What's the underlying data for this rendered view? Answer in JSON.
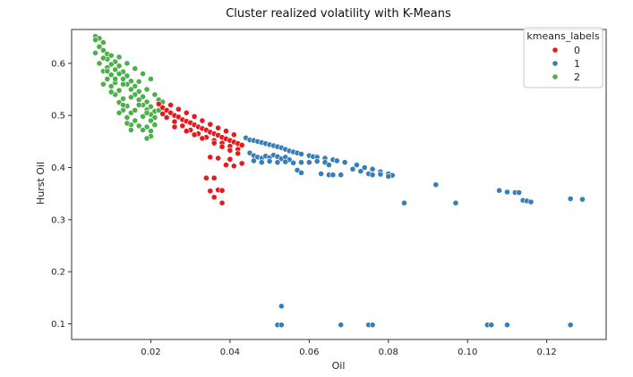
{
  "chart_data": {
    "type": "scatter",
    "title": "Cluster realized volatility with K-Means",
    "xlabel": "Oil",
    "ylabel": "Hurst Oil",
    "xlim": [
      0.0,
      0.135
    ],
    "ylim": [
      0.07,
      0.665
    ],
    "xticks": [
      0.02,
      0.04,
      0.06,
      0.08,
      0.1,
      0.12
    ],
    "xtick_labels": [
      "0.02",
      "0.04",
      "0.06",
      "0.08",
      "0.10",
      "0.12"
    ],
    "yticks": [
      0.1,
      0.2,
      0.3,
      0.4,
      0.5,
      0.6
    ],
    "ytick_labels": [
      "0.1",
      "0.2",
      "0.3",
      "0.4",
      "0.5",
      "0.6"
    ],
    "grid": false,
    "legend": {
      "title": "kmeans_labels",
      "placement": "top-right",
      "entries": [
        "0",
        "1",
        "2"
      ]
    },
    "colors": {
      "0": "#e41a1c",
      "1": "#377eb8",
      "2": "#4daf4a"
    },
    "series": [
      {
        "name": "0",
        "points": [
          [
            0.022,
            0.522
          ],
          [
            0.023,
            0.515
          ],
          [
            0.024,
            0.51
          ],
          [
            0.025,
            0.505
          ],
          [
            0.026,
            0.5
          ],
          [
            0.027,
            0.497
          ],
          [
            0.028,
            0.492
          ],
          [
            0.029,
            0.489
          ],
          [
            0.03,
            0.486
          ],
          [
            0.031,
            0.482
          ],
          [
            0.032,
            0.478
          ],
          [
            0.033,
            0.475
          ],
          [
            0.034,
            0.472
          ],
          [
            0.035,
            0.468
          ],
          [
            0.036,
            0.465
          ],
          [
            0.037,
            0.462
          ],
          [
            0.038,
            0.458
          ],
          [
            0.039,
            0.455
          ],
          [
            0.04,
            0.452
          ],
          [
            0.041,
            0.449
          ],
          [
            0.042,
            0.446
          ],
          [
            0.043,
            0.443
          ],
          [
            0.024,
            0.496
          ],
          [
            0.026,
            0.488
          ],
          [
            0.028,
            0.48
          ],
          [
            0.03,
            0.472
          ],
          [
            0.032,
            0.465
          ],
          [
            0.034,
            0.458
          ],
          [
            0.036,
            0.452
          ],
          [
            0.038,
            0.447
          ],
          [
            0.04,
            0.441
          ],
          [
            0.042,
            0.435
          ],
          [
            0.025,
            0.52
          ],
          [
            0.027,
            0.512
          ],
          [
            0.029,
            0.505
          ],
          [
            0.031,
            0.498
          ],
          [
            0.033,
            0.49
          ],
          [
            0.035,
            0.483
          ],
          [
            0.037,
            0.476
          ],
          [
            0.039,
            0.47
          ],
          [
            0.041,
            0.463
          ],
          [
            0.023,
            0.503
          ],
          [
            0.026,
            0.478
          ],
          [
            0.029,
            0.47
          ],
          [
            0.031,
            0.463
          ],
          [
            0.033,
            0.456
          ],
          [
            0.036,
            0.447
          ],
          [
            0.038,
            0.44
          ],
          [
            0.04,
            0.433
          ],
          [
            0.042,
            0.427
          ],
          [
            0.037,
            0.418
          ],
          [
            0.035,
            0.42
          ],
          [
            0.04,
            0.416
          ],
          [
            0.043,
            0.408
          ],
          [
            0.041,
            0.403
          ],
          [
            0.039,
            0.405
          ],
          [
            0.034,
            0.38
          ],
          [
            0.036,
            0.38
          ],
          [
            0.037,
            0.357
          ],
          [
            0.035,
            0.355
          ],
          [
            0.038,
            0.356
          ],
          [
            0.036,
            0.343
          ],
          [
            0.038,
            0.332
          ]
        ]
      },
      {
        "name": "1",
        "points": [
          [
            0.044,
            0.457
          ],
          [
            0.045,
            0.453
          ],
          [
            0.046,
            0.452
          ],
          [
            0.047,
            0.45
          ],
          [
            0.048,
            0.448
          ],
          [
            0.049,
            0.446
          ],
          [
            0.05,
            0.444
          ],
          [
            0.051,
            0.442
          ],
          [
            0.052,
            0.44
          ],
          [
            0.053,
            0.438
          ],
          [
            0.054,
            0.435
          ],
          [
            0.055,
            0.432
          ],
          [
            0.056,
            0.43
          ],
          [
            0.057,
            0.428
          ],
          [
            0.058,
            0.426
          ],
          [
            0.06,
            0.423
          ],
          [
            0.061,
            0.421
          ],
          [
            0.062,
            0.42
          ],
          [
            0.064,
            0.418
          ],
          [
            0.066,
            0.415
          ],
          [
            0.067,
            0.413
          ],
          [
            0.069,
            0.41
          ],
          [
            0.072,
            0.405
          ],
          [
            0.074,
            0.4
          ],
          [
            0.076,
            0.397
          ],
          [
            0.078,
            0.392
          ],
          [
            0.08,
            0.388
          ],
          [
            0.081,
            0.385
          ],
          [
            0.08,
            0.383
          ],
          [
            0.045,
            0.428
          ],
          [
            0.046,
            0.423
          ],
          [
            0.047,
            0.42
          ],
          [
            0.048,
            0.418
          ],
          [
            0.049,
            0.422
          ],
          [
            0.05,
            0.419
          ],
          [
            0.051,
            0.424
          ],
          [
            0.052,
            0.421
          ],
          [
            0.053,
            0.417
          ],
          [
            0.054,
            0.42
          ],
          [
            0.055,
            0.415
          ],
          [
            0.046,
            0.413
          ],
          [
            0.048,
            0.41
          ],
          [
            0.05,
            0.412
          ],
          [
            0.052,
            0.41
          ],
          [
            0.054,
            0.411
          ],
          [
            0.056,
            0.409
          ],
          [
            0.058,
            0.41
          ],
          [
            0.06,
            0.41
          ],
          [
            0.062,
            0.412
          ],
          [
            0.064,
            0.41
          ],
          [
            0.065,
            0.405
          ],
          [
            0.057,
            0.395
          ],
          [
            0.058,
            0.39
          ],
          [
            0.063,
            0.388
          ],
          [
            0.065,
            0.386
          ],
          [
            0.066,
            0.386
          ],
          [
            0.068,
            0.386
          ],
          [
            0.071,
            0.397
          ],
          [
            0.073,
            0.393
          ],
          [
            0.075,
            0.388
          ],
          [
            0.076,
            0.386
          ],
          [
            0.078,
            0.387
          ],
          [
            0.084,
            0.332
          ],
          [
            0.092,
            0.367
          ],
          [
            0.097,
            0.332
          ],
          [
            0.108,
            0.356
          ],
          [
            0.11,
            0.353
          ],
          [
            0.112,
            0.352
          ],
          [
            0.113,
            0.352
          ],
          [
            0.114,
            0.337
          ],
          [
            0.115,
            0.336
          ],
          [
            0.116,
            0.334
          ],
          [
            0.126,
            0.34
          ],
          [
            0.129,
            0.339
          ],
          [
            0.053,
            0.134
          ],
          [
            0.052,
            0.098
          ],
          [
            0.053,
            0.098
          ],
          [
            0.068,
            0.098
          ],
          [
            0.075,
            0.098
          ],
          [
            0.076,
            0.098
          ],
          [
            0.105,
            0.098
          ],
          [
            0.106,
            0.098
          ],
          [
            0.11,
            0.098
          ],
          [
            0.126,
            0.098
          ]
        ]
      },
      {
        "name": "2",
        "points": [
          [
            0.006,
            0.652
          ],
          [
            0.007,
            0.648
          ],
          [
            0.008,
            0.64
          ],
          [
            0.007,
            0.632
          ],
          [
            0.008,
            0.625
          ],
          [
            0.006,
            0.62
          ],
          [
            0.009,
            0.618
          ],
          [
            0.01,
            0.615
          ],
          [
            0.009,
            0.608
          ],
          [
            0.011,
            0.603
          ],
          [
            0.01,
            0.598
          ],
          [
            0.012,
            0.595
          ],
          [
            0.011,
            0.588
          ],
          [
            0.013,
            0.584
          ],
          [
            0.012,
            0.58
          ],
          [
            0.014,
            0.576
          ],
          [
            0.013,
            0.57
          ],
          [
            0.015,
            0.566
          ],
          [
            0.014,
            0.56
          ],
          [
            0.016,
            0.556
          ],
          [
            0.015,
            0.55
          ],
          [
            0.017,
            0.546
          ],
          [
            0.016,
            0.54
          ],
          [
            0.018,
            0.536
          ],
          [
            0.017,
            0.53
          ],
          [
            0.019,
            0.526
          ],
          [
            0.018,
            0.52
          ],
          [
            0.02,
            0.517
          ],
          [
            0.019,
            0.511
          ],
          [
            0.021,
            0.508
          ],
          [
            0.02,
            0.502
          ],
          [
            0.021,
            0.496
          ],
          [
            0.02,
            0.49
          ],
          [
            0.021,
            0.482
          ],
          [
            0.019,
            0.478
          ],
          [
            0.02,
            0.47
          ],
          [
            0.018,
            0.472
          ],
          [
            0.017,
            0.48
          ],
          [
            0.015,
            0.482
          ],
          [
            0.016,
            0.49
          ],
          [
            0.014,
            0.496
          ],
          [
            0.015,
            0.505
          ],
          [
            0.013,
            0.51
          ],
          [
            0.014,
            0.518
          ],
          [
            0.012,
            0.525
          ],
          [
            0.013,
            0.532
          ],
          [
            0.011,
            0.54
          ],
          [
            0.012,
            0.548
          ],
          [
            0.01,
            0.556
          ],
          [
            0.011,
            0.563
          ],
          [
            0.009,
            0.57
          ],
          [
            0.01,
            0.578
          ],
          [
            0.008,
            0.585
          ],
          [
            0.009,
            0.592
          ],
          [
            0.007,
            0.6
          ],
          [
            0.008,
            0.61
          ],
          [
            0.006,
            0.645
          ],
          [
            0.012,
            0.612
          ],
          [
            0.014,
            0.6
          ],
          [
            0.016,
            0.59
          ],
          [
            0.018,
            0.58
          ],
          [
            0.02,
            0.57
          ],
          [
            0.017,
            0.565
          ],
          [
            0.019,
            0.55
          ],
          [
            0.021,
            0.54
          ],
          [
            0.022,
            0.53
          ],
          [
            0.023,
            0.526
          ],
          [
            0.011,
            0.57
          ],
          [
            0.013,
            0.56
          ],
          [
            0.015,
            0.535
          ],
          [
            0.017,
            0.52
          ],
          [
            0.019,
            0.505
          ],
          [
            0.016,
            0.51
          ],
          [
            0.018,
            0.498
          ],
          [
            0.02,
            0.46
          ],
          [
            0.019,
            0.456
          ],
          [
            0.013,
            0.52
          ],
          [
            0.012,
            0.505
          ],
          [
            0.014,
            0.485
          ],
          [
            0.015,
            0.472
          ],
          [
            0.009,
            0.585
          ],
          [
            0.008,
            0.56
          ],
          [
            0.01,
            0.545
          ],
          [
            0.022,
            0.51
          ]
        ]
      }
    ]
  }
}
